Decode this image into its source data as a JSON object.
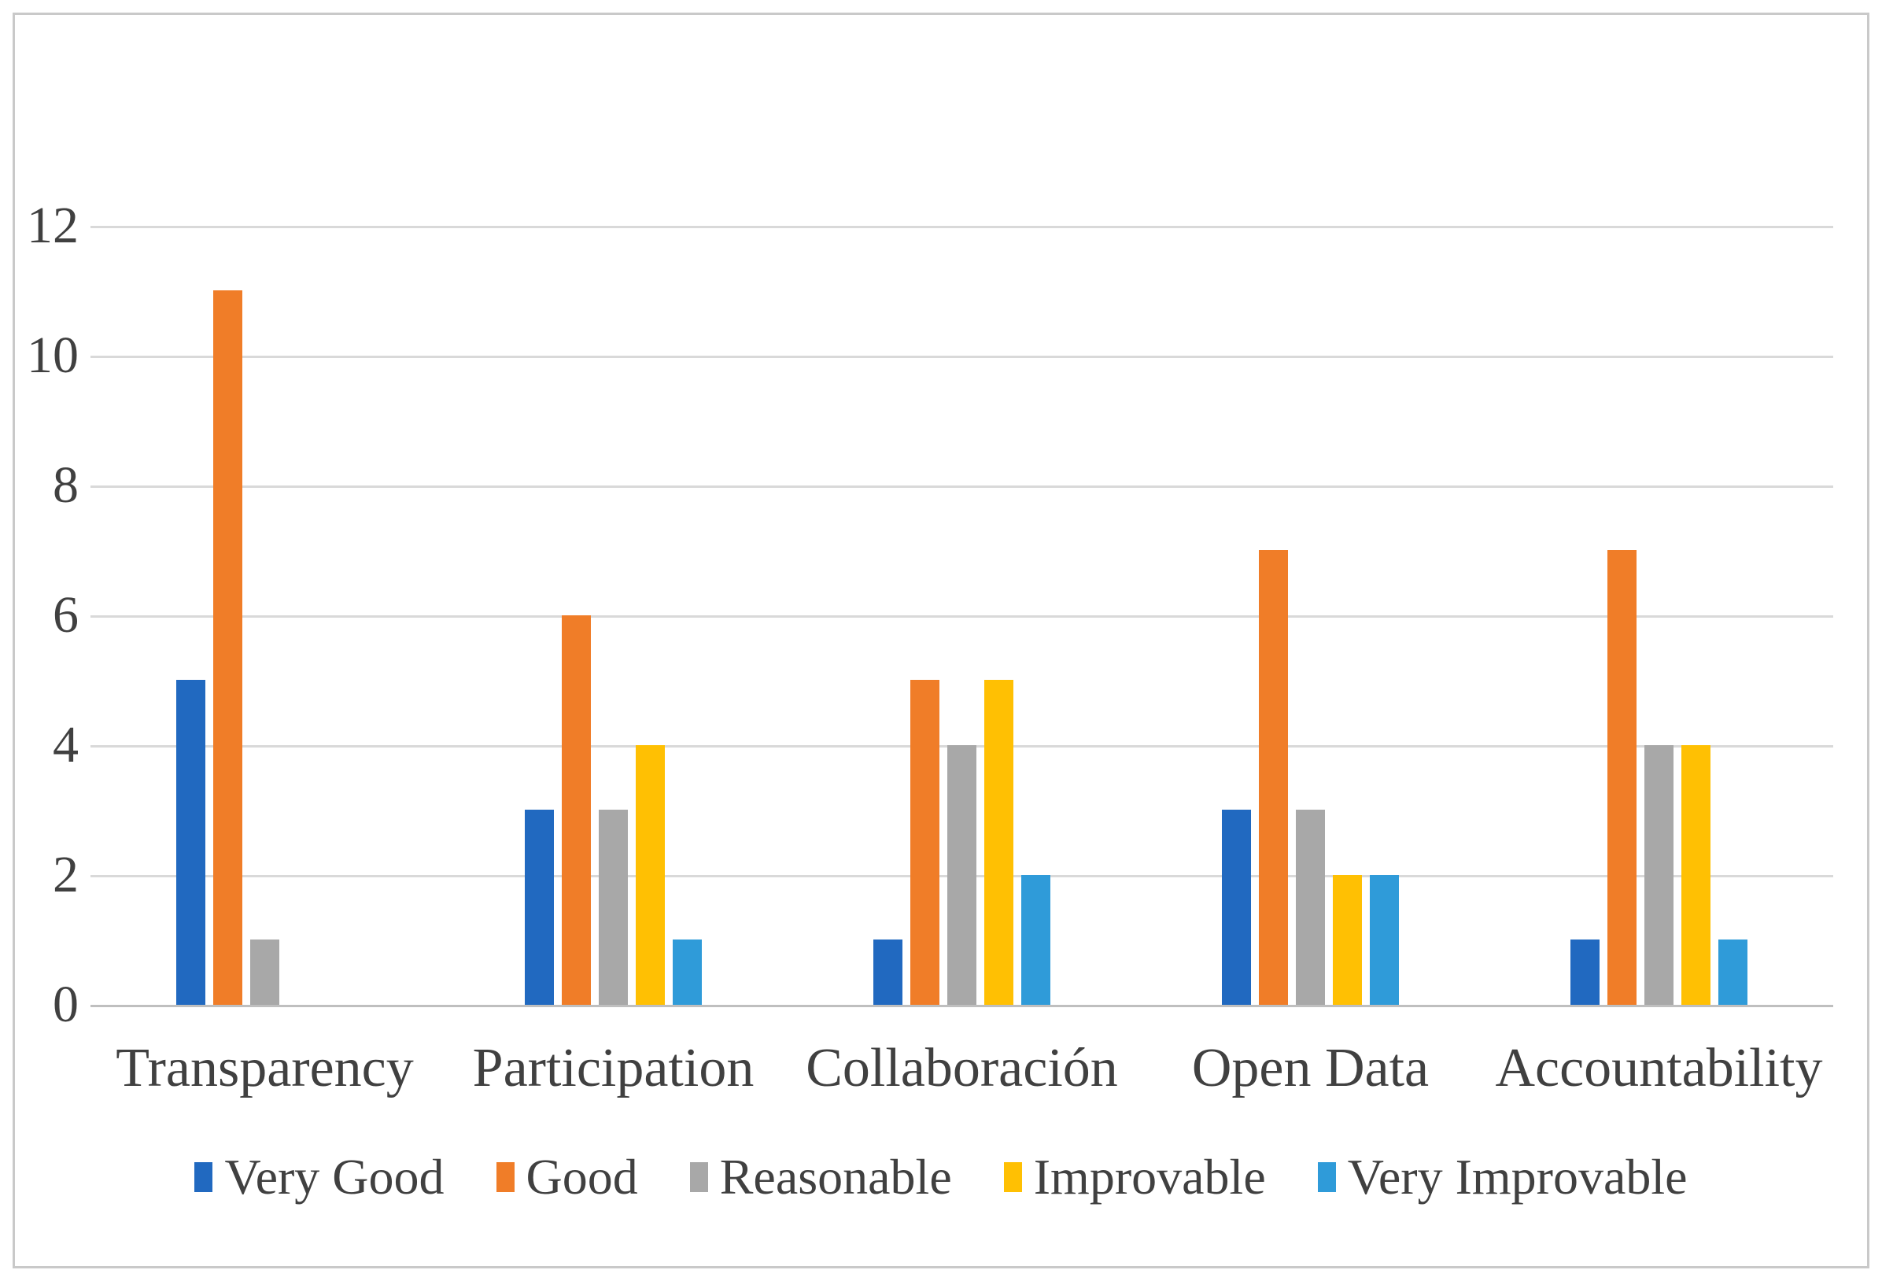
{
  "chart_data": {
    "type": "bar",
    "title": "",
    "xlabel": "",
    "ylabel": "",
    "categories": [
      "Transparency",
      "Participation",
      "Collaboración",
      "Open Data",
      "Accountability"
    ],
    "series": [
      {
        "name": "Very Good",
        "color": "#2169c0",
        "values": [
          5,
          3,
          1,
          3,
          1
        ]
      },
      {
        "name": "Good",
        "color": "#f07d28",
        "values": [
          11,
          6,
          5,
          7,
          7
        ]
      },
      {
        "name": "Reasonable",
        "color": "#a8a8a8",
        "values": [
          1,
          3,
          4,
          3,
          4
        ]
      },
      {
        "name": "Improvable",
        "color": "#ffc003",
        "values": [
          0,
          4,
          5,
          2,
          4
        ]
      },
      {
        "name": "Very Improvable",
        "color": "#2f9bd9",
        "values": [
          0,
          1,
          2,
          2,
          1
        ]
      }
    ],
    "y_ticks": [
      12,
      10,
      8,
      6,
      4,
      2,
      0
    ],
    "ylim": [
      0,
      12
    ],
    "grid": true,
    "legend_position": "bottom",
    "gridline_color": "#d9d9d9",
    "axis_line_color": "#bfbfbf",
    "text_color": "#404040"
  }
}
